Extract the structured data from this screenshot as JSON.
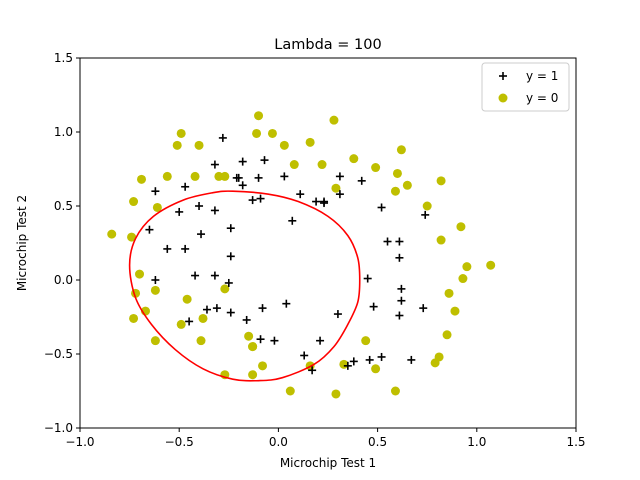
{
  "chart_data": {
    "type": "scatter",
    "title": "Lambda = 100",
    "xlabel": "Microchip Test 1",
    "ylabel": "Microchip Test 2",
    "xlim": [
      -1.0,
      1.5
    ],
    "ylim": [
      -1.0,
      1.5
    ],
    "xticks": [
      -1.0,
      -0.5,
      0.0,
      0.5,
      1.0,
      1.5
    ],
    "yticks": [
      -1.0,
      -0.5,
      0.0,
      0.5,
      1.0,
      1.5
    ],
    "xtick_labels": [
      "−1.0",
      "−0.5",
      "0.0",
      "0.5",
      "1.0",
      "1.5"
    ],
    "ytick_labels": [
      "−1.0",
      "−0.5",
      "0.0",
      "0.5",
      "1.0",
      "1.5"
    ],
    "grid": false,
    "legend_position": "top-right",
    "series": [
      {
        "name": "y = 1",
        "marker": "plus",
        "color": "#000000",
        "points": [
          [
            -0.28,
            0.96
          ],
          [
            -0.18,
            0.8
          ],
          [
            -0.07,
            0.81
          ],
          [
            -0.32,
            0.78
          ],
          [
            -0.47,
            0.63
          ],
          [
            -0.62,
            0.6
          ],
          [
            -0.2,
            0.69
          ],
          [
            -0.18,
            0.64
          ],
          [
            -0.1,
            0.69
          ],
          [
            0.03,
            0.7
          ],
          [
            0.11,
            0.58
          ],
          [
            0.19,
            0.53
          ],
          [
            0.23,
            0.53
          ],
          [
            0.31,
            0.7
          ],
          [
            0.31,
            0.58
          ],
          [
            0.42,
            0.67
          ],
          [
            0.52,
            0.49
          ],
          [
            -0.13,
            0.54
          ],
          [
            -0.09,
            0.55
          ],
          [
            -0.32,
            0.47
          ],
          [
            -0.5,
            0.46
          ],
          [
            -0.4,
            0.5
          ],
          [
            -0.24,
            0.35
          ],
          [
            -0.65,
            0.34
          ],
          [
            -0.39,
            0.31
          ],
          [
            -0.47,
            0.21
          ],
          [
            -0.56,
            0.21
          ],
          [
            -0.24,
            0.16
          ],
          [
            -0.62,
            0.0
          ],
          [
            -0.42,
            0.03
          ],
          [
            -0.32,
            0.03
          ],
          [
            -0.25,
            -0.02
          ],
          [
            -0.36,
            -0.2
          ],
          [
            -0.45,
            -0.28
          ],
          [
            -0.31,
            -0.19
          ],
          [
            -0.24,
            -0.22
          ],
          [
            -0.16,
            -0.27
          ],
          [
            -0.09,
            -0.4
          ],
          [
            -0.08,
            -0.19
          ],
          [
            0.04,
            -0.16
          ],
          [
            -0.02,
            -0.41
          ],
          [
            0.21,
            -0.41
          ],
          [
            0.13,
            -0.51
          ],
          [
            0.17,
            -0.61
          ],
          [
            0.3,
            -0.23
          ],
          [
            0.35,
            -0.58
          ],
          [
            0.38,
            -0.55
          ],
          [
            0.46,
            -0.54
          ],
          [
            0.52,
            -0.52
          ],
          [
            0.67,
            -0.54
          ],
          [
            0.61,
            -0.24
          ],
          [
            0.62,
            -0.14
          ],
          [
            0.73,
            -0.19
          ],
          [
            0.48,
            -0.18
          ],
          [
            0.61,
            0.26
          ],
          [
            0.55,
            0.26
          ],
          [
            0.61,
            0.15
          ],
          [
            0.74,
            0.44
          ],
          [
            0.45,
            0.01
          ],
          [
            0.62,
            -0.06
          ],
          [
            0.07,
            0.4
          ],
          [
            0.23,
            0.52
          ],
          [
            -0.21,
            0.69
          ]
        ]
      },
      {
        "name": "y = 0",
        "marker": "circle",
        "color": "#bfbf00",
        "points": [
          [
            -0.51,
            0.91
          ],
          [
            -0.49,
            0.99
          ],
          [
            -0.4,
            0.91
          ],
          [
            -0.11,
            0.99
          ],
          [
            -0.1,
            1.11
          ],
          [
            -0.03,
            0.99
          ],
          [
            0.03,
            0.91
          ],
          [
            0.08,
            0.78
          ],
          [
            0.16,
            0.93
          ],
          [
            0.22,
            0.78
          ],
          [
            0.28,
            1.08
          ],
          [
            0.38,
            0.82
          ],
          [
            0.49,
            0.76
          ],
          [
            0.6,
            0.72
          ],
          [
            0.62,
            0.88
          ],
          [
            0.59,
            0.6
          ],
          [
            0.65,
            0.64
          ],
          [
            0.75,
            0.5
          ],
          [
            0.82,
            0.67
          ],
          [
            0.92,
            0.36
          ],
          [
            0.82,
            0.27
          ],
          [
            0.95,
            0.09
          ],
          [
            1.07,
            0.1
          ],
          [
            0.93,
            0.01
          ],
          [
            0.86,
            -0.09
          ],
          [
            0.89,
            -0.21
          ],
          [
            0.85,
            -0.37
          ],
          [
            0.81,
            -0.52
          ],
          [
            0.79,
            -0.56
          ],
          [
            0.59,
            -0.75
          ],
          [
            0.49,
            -0.6
          ],
          [
            0.44,
            -0.41
          ],
          [
            0.29,
            -0.77
          ],
          [
            0.33,
            -0.57
          ],
          [
            0.16,
            -0.58
          ],
          [
            0.06,
            -0.75
          ],
          [
            -0.08,
            -0.58
          ],
          [
            -0.13,
            -0.45
          ],
          [
            -0.15,
            -0.38
          ],
          [
            -0.27,
            -0.06
          ],
          [
            -0.38,
            -0.26
          ],
          [
            -0.39,
            -0.41
          ],
          [
            -0.49,
            -0.3
          ],
          [
            -0.46,
            -0.13
          ],
          [
            -0.62,
            -0.07
          ],
          [
            -0.62,
            -0.41
          ],
          [
            -0.7,
            0.04
          ],
          [
            -0.72,
            -0.09
          ],
          [
            -0.74,
            0.29
          ],
          [
            -0.73,
            -0.26
          ],
          [
            -0.84,
            0.31
          ],
          [
            -0.73,
            0.53
          ],
          [
            -0.69,
            0.68
          ],
          [
            -0.56,
            0.7
          ],
          [
            -0.61,
            0.49
          ],
          [
            -0.42,
            0.7
          ],
          [
            -0.27,
            0.7
          ],
          [
            -0.13,
            -0.45
          ],
          [
            -0.27,
            -0.64
          ],
          [
            -0.13,
            -0.64
          ],
          [
            0.29,
            0.62
          ],
          [
            -0.3,
            0.7
          ],
          [
            -0.67,
            -0.21
          ]
        ]
      }
    ],
    "decision_boundary": {
      "color": "#ff0000",
      "points": [
        [
          -0.23,
          0.6
        ],
        [
          -0.05,
          0.58
        ],
        [
          0.1,
          0.53
        ],
        [
          0.25,
          0.43
        ],
        [
          0.35,
          0.3
        ],
        [
          0.4,
          0.15
        ],
        [
          0.41,
          0.0
        ],
        [
          0.4,
          -0.15
        ],
        [
          0.35,
          -0.3
        ],
        [
          0.28,
          -0.45
        ],
        [
          0.18,
          -0.57
        ],
        [
          0.02,
          -0.66
        ],
        [
          -0.1,
          -0.68
        ],
        [
          -0.23,
          -0.67
        ],
        [
          -0.38,
          -0.6
        ],
        [
          -0.52,
          -0.47
        ],
        [
          -0.64,
          -0.3
        ],
        [
          -0.72,
          -0.12
        ],
        [
          -0.75,
          0.1
        ],
        [
          -0.72,
          0.28
        ],
        [
          -0.63,
          0.43
        ],
        [
          -0.48,
          0.54
        ],
        [
          -0.33,
          0.59
        ],
        [
          -0.23,
          0.6
        ]
      ]
    }
  }
}
